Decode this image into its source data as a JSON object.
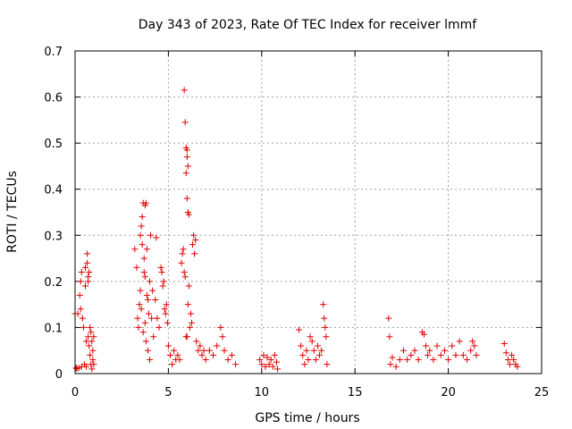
{
  "chart_data": {
    "type": "scatter",
    "title": "Day 343 of 2023, Rate Of TEC Index for receiver lmmf",
    "xlabel": "GPS time / hours",
    "ylabel": "ROTI / TECUs",
    "xlim": [
      0,
      25
    ],
    "ylim": [
      0,
      0.7
    ],
    "xticks": [
      "0",
      "5",
      "10",
      "15",
      "20",
      "25"
    ],
    "yticks": [
      "0",
      "0.1",
      "0.2",
      "0.3",
      "0.4",
      "0.5",
      "0.6",
      "0.7"
    ],
    "grid": true,
    "marker": "plus",
    "color": "#e00000",
    "series": [
      {
        "values": [
          [
            0.0,
            0.13
          ],
          [
            0.05,
            0.012
          ],
          [
            0.1,
            0.011
          ],
          [
            0.15,
            0.13
          ],
          [
            0.2,
            0.012
          ],
          [
            0.25,
            0.17
          ],
          [
            0.3,
            0.14
          ],
          [
            0.3,
            0.2
          ],
          [
            0.35,
            0.22
          ],
          [
            0.35,
            0.015
          ],
          [
            0.4,
            0.12
          ],
          [
            0.45,
            0.1
          ],
          [
            0.5,
            0.02
          ],
          [
            0.55,
            0.23
          ],
          [
            0.55,
            0.19
          ],
          [
            0.6,
            0.015
          ],
          [
            0.6,
            0.07
          ],
          [
            0.65,
            0.26
          ],
          [
            0.65,
            0.24
          ],
          [
            0.7,
            0.21
          ],
          [
            0.7,
            0.2
          ],
          [
            0.7,
            0.08
          ],
          [
            0.75,
            0.22
          ],
          [
            0.75,
            0.06
          ],
          [
            0.8,
            0.1
          ],
          [
            0.8,
            0.04
          ],
          [
            0.85,
            0.09
          ],
          [
            0.85,
            0.02
          ],
          [
            0.9,
            0.07
          ],
          [
            0.9,
            0.01
          ],
          [
            0.95,
            0.05
          ],
          [
            0.95,
            0.03
          ],
          [
            1.0,
            0.02
          ],
          [
            1.0,
            0.08
          ],
          [
            3.2,
            0.27
          ],
          [
            3.3,
            0.23
          ],
          [
            3.35,
            0.12
          ],
          [
            3.4,
            0.1
          ],
          [
            3.45,
            0.15
          ],
          [
            3.5,
            0.3
          ],
          [
            3.5,
            0.18
          ],
          [
            3.55,
            0.32
          ],
          [
            3.55,
            0.14
          ],
          [
            3.6,
            0.34
          ],
          [
            3.6,
            0.28
          ],
          [
            3.65,
            0.37
          ],
          [
            3.65,
            0.09
          ],
          [
            3.7,
            0.22
          ],
          [
            3.7,
            0.25
          ],
          [
            3.75,
            0.21
          ],
          [
            3.75,
            0.11
          ],
          [
            3.8,
            0.37
          ],
          [
            3.8,
            0.07
          ],
          [
            3.85,
            0.17
          ],
          [
            3.85,
            0.27
          ],
          [
            3.9,
            0.16
          ],
          [
            3.9,
            0.05
          ],
          [
            3.95,
            0.13
          ],
          [
            4.0,
            0.2
          ],
          [
            4.0,
            0.03
          ],
          [
            4.05,
            0.3
          ],
          [
            4.1,
            0.12
          ],
          [
            4.15,
            0.18
          ],
          [
            4.2,
            0.08
          ],
          [
            4.3,
            0.16
          ],
          [
            4.4,
            0.12
          ],
          [
            4.5,
            0.1
          ],
          [
            4.6,
            0.23
          ],
          [
            4.65,
            0.22
          ],
          [
            4.7,
            0.19
          ],
          [
            4.75,
            0.2
          ],
          [
            4.8,
            0.14
          ],
          [
            4.85,
            0.13
          ],
          [
            4.9,
            0.15
          ],
          [
            4.95,
            0.11
          ],
          [
            5.0,
            0.06
          ],
          [
            5.1,
            0.04
          ],
          [
            5.2,
            0.02
          ],
          [
            5.3,
            0.05
          ],
          [
            5.4,
            0.03
          ],
          [
            5.5,
            0.04
          ],
          [
            5.6,
            0.03
          ],
          [
            5.7,
            0.24
          ],
          [
            5.75,
            0.26
          ],
          [
            5.8,
            0.27
          ],
          [
            5.85,
            0.22
          ],
          [
            5.9,
            0.21
          ],
          [
            5.95,
            0.08
          ],
          [
            6.0,
            0.08
          ],
          [
            6.05,
            0.15
          ],
          [
            6.1,
            0.19
          ],
          [
            6.15,
            0.1
          ],
          [
            6.2,
            0.13
          ],
          [
            6.25,
            0.11
          ],
          [
            6.3,
            0.28
          ],
          [
            6.35,
            0.3
          ],
          [
            6.4,
            0.26
          ],
          [
            6.45,
            0.29
          ],
          [
            6.5,
            0.07
          ],
          [
            6.6,
            0.05
          ],
          [
            6.7,
            0.06
          ],
          [
            6.8,
            0.04
          ],
          [
            6.9,
            0.05
          ],
          [
            7.0,
            0.03
          ],
          [
            7.2,
            0.05
          ],
          [
            7.4,
            0.04
          ],
          [
            7.6,
            0.06
          ],
          [
            7.8,
            0.1
          ],
          [
            7.9,
            0.08
          ],
          [
            8.0,
            0.05
          ],
          [
            8.2,
            0.03
          ],
          [
            8.4,
            0.04
          ],
          [
            8.6,
            0.02
          ],
          [
            5.85,
            0.615
          ],
          [
            5.9,
            0.545
          ],
          [
            5.95,
            0.49
          ],
          [
            6.0,
            0.485
          ],
          [
            6.0,
            0.47
          ],
          [
            6.05,
            0.45
          ],
          [
            5.95,
            0.435
          ],
          [
            6.0,
            0.38
          ],
          [
            6.05,
            0.35
          ],
          [
            6.1,
            0.345
          ],
          [
            3.75,
            0.365
          ],
          [
            4.35,
            0.295
          ],
          [
            9.9,
            0.03
          ],
          [
            10.0,
            0.02
          ],
          [
            10.1,
            0.04
          ],
          [
            10.2,
            0.015
          ],
          [
            10.3,
            0.035
          ],
          [
            10.4,
            0.02
          ],
          [
            10.5,
            0.03
          ],
          [
            10.6,
            0.015
          ],
          [
            10.7,
            0.04
          ],
          [
            10.8,
            0.025
          ],
          [
            10.85,
            0.01
          ],
          [
            12.0,
            0.095
          ],
          [
            12.1,
            0.06
          ],
          [
            12.2,
            0.04
          ],
          [
            12.3,
            0.02
          ],
          [
            12.4,
            0.05
          ],
          [
            12.5,
            0.03
          ],
          [
            12.6,
            0.08
          ],
          [
            12.7,
            0.07
          ],
          [
            12.8,
            0.05
          ],
          [
            12.9,
            0.03
          ],
          [
            13.0,
            0.06
          ],
          [
            13.1,
            0.04
          ],
          [
            13.2,
            0.05
          ],
          [
            13.3,
            0.15
          ],
          [
            13.35,
            0.12
          ],
          [
            13.4,
            0.1
          ],
          [
            13.45,
            0.08
          ],
          [
            13.5,
            0.02
          ],
          [
            16.8,
            0.12
          ],
          [
            16.85,
            0.08
          ],
          [
            16.9,
            0.02
          ],
          [
            17.0,
            0.035
          ],
          [
            17.2,
            0.015
          ],
          [
            17.4,
            0.03
          ],
          [
            17.6,
            0.05
          ],
          [
            17.8,
            0.03
          ],
          [
            18.0,
            0.04
          ],
          [
            18.2,
            0.05
          ],
          [
            18.4,
            0.03
          ],
          [
            18.6,
            0.09
          ],
          [
            18.7,
            0.085
          ],
          [
            18.8,
            0.06
          ],
          [
            18.9,
            0.04
          ],
          [
            19.0,
            0.05
          ],
          [
            19.2,
            0.03
          ],
          [
            19.4,
            0.06
          ],
          [
            19.6,
            0.04
          ],
          [
            19.8,
            0.05
          ],
          [
            20.0,
            0.03
          ],
          [
            20.2,
            0.06
          ],
          [
            20.4,
            0.04
          ],
          [
            20.6,
            0.07
          ],
          [
            20.8,
            0.04
          ],
          [
            21.0,
            0.03
          ],
          [
            21.2,
            0.05
          ],
          [
            21.3,
            0.07
          ],
          [
            21.4,
            0.06
          ],
          [
            21.5,
            0.04
          ],
          [
            23.0,
            0.065
          ],
          [
            23.1,
            0.045
          ],
          [
            23.2,
            0.03
          ],
          [
            23.3,
            0.02
          ],
          [
            23.4,
            0.04
          ],
          [
            23.5,
            0.03
          ],
          [
            23.6,
            0.02
          ],
          [
            23.7,
            0.015
          ]
        ]
      }
    ]
  }
}
